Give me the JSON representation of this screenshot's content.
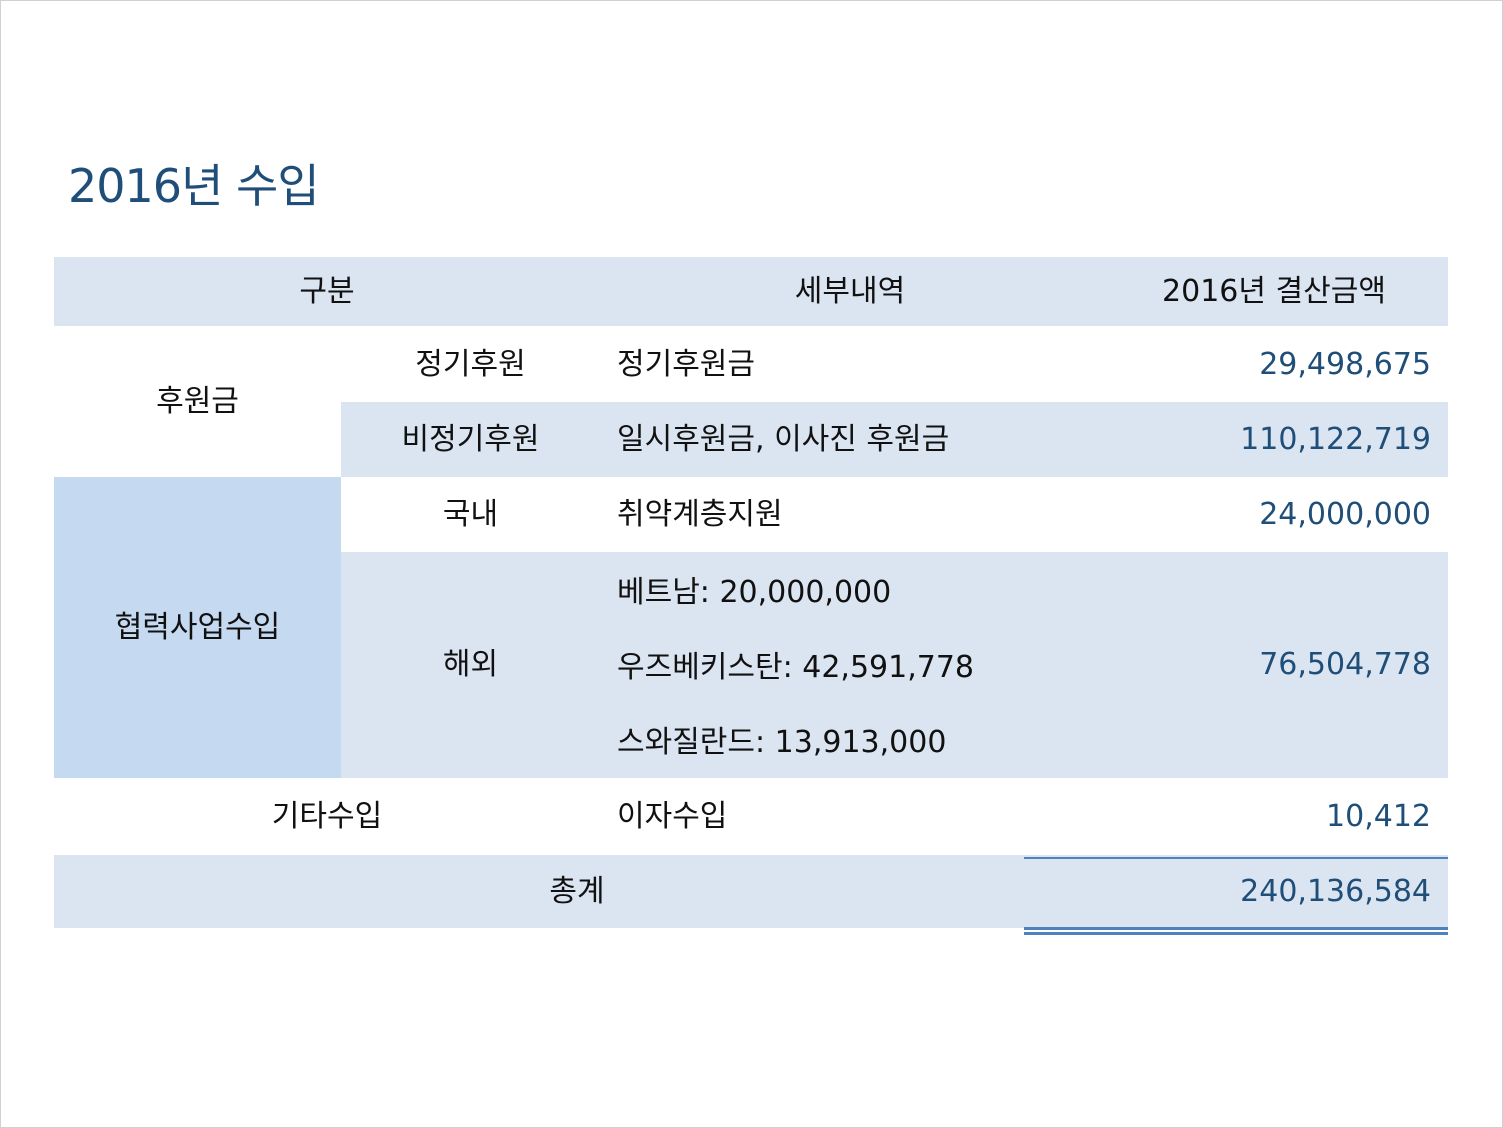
{
  "title": "2016년 수입",
  "table": {
    "headers": {
      "category": "구분",
      "detail": "세부내역",
      "amount": "2016년 결산금액"
    },
    "donations": {
      "label": "후원금",
      "regular": {
        "sub": "정기후원",
        "detail": "정기후원금",
        "amount": "29,498,675"
      },
      "irregular": {
        "sub": "비정기후원",
        "detail": "일시후원금, 이사진 후원금",
        "amount": "110,122,719"
      }
    },
    "cooperation": {
      "label": "협력사업수입",
      "domestic": {
        "sub": "국내",
        "detail": "취약계층지원",
        "amount": "24,000,000"
      },
      "overseas": {
        "sub": "해외",
        "details": [
          "베트남: 20,000,000",
          "우즈베키스탄: 42,591,778",
          "스와질란드: 13,913,000"
        ],
        "amount": "76,504,778"
      }
    },
    "other": {
      "label": "기타수입",
      "detail": "이자수입",
      "amount": "10,412"
    },
    "total": {
      "label": "총계",
      "amount": "240,136,584"
    }
  },
  "colors": {
    "title": "#1f4e79",
    "amount_text": "#1f4e79",
    "row_light": "#dbe5f1",
    "row_mid": "#c5d9f1",
    "rule": "#4f81bd"
  }
}
